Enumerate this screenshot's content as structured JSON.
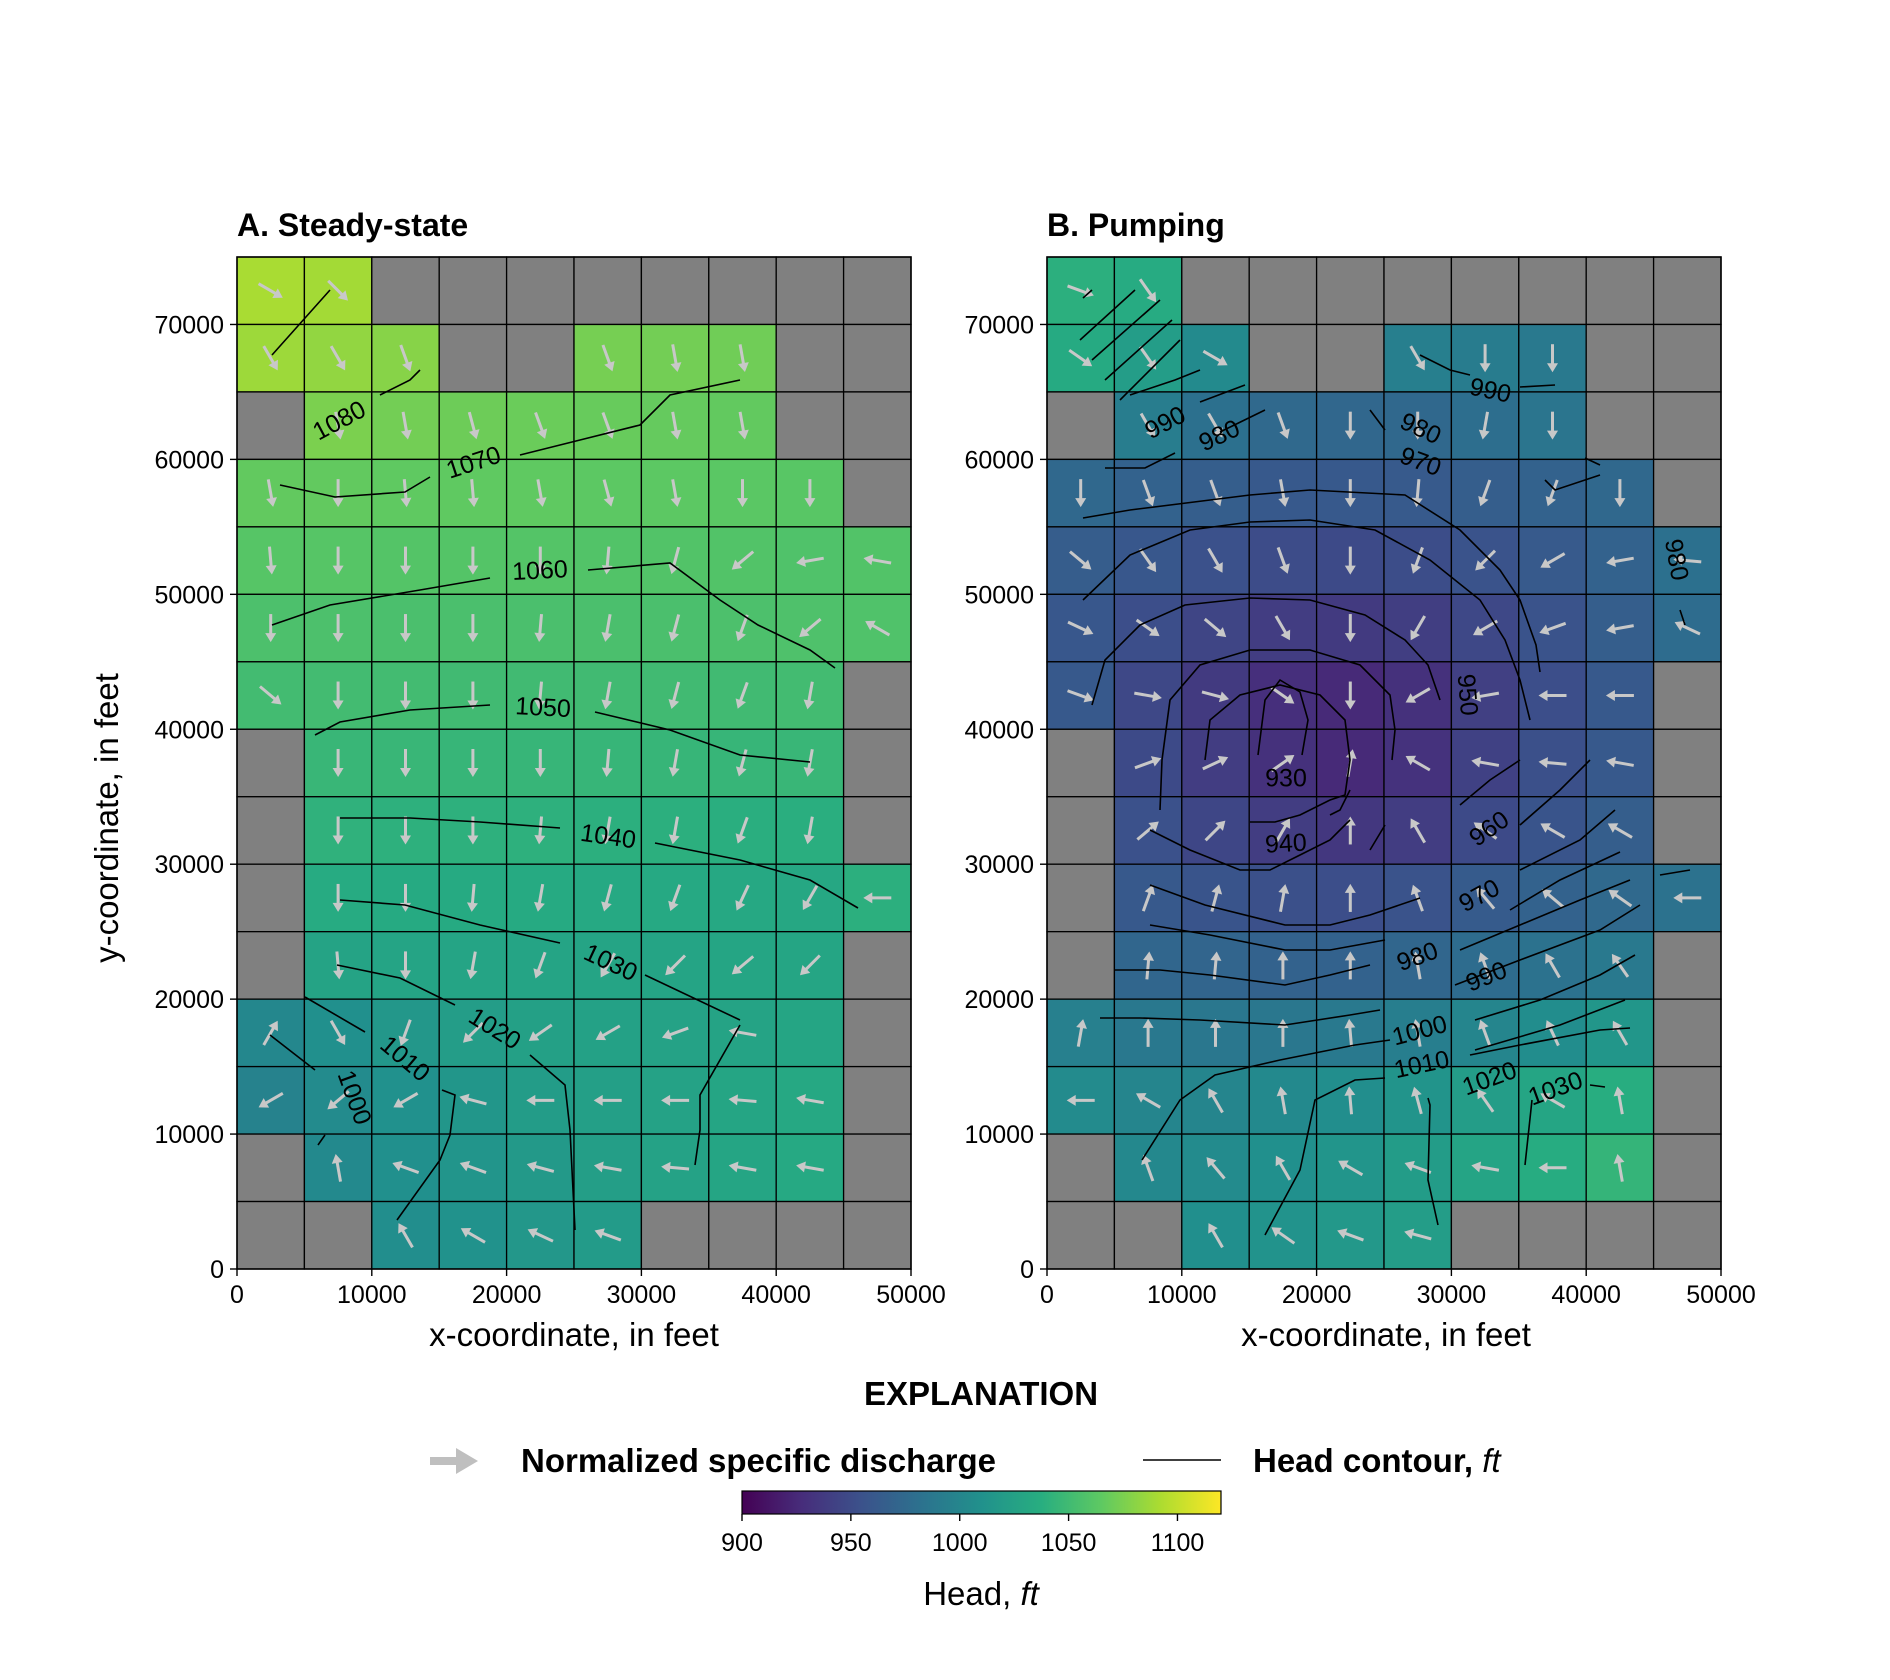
{
  "chart_data": [
    {
      "type": "heatmap",
      "title": "A. Steady-state",
      "xlabel": "x-coordinate, in feet",
      "ylabel": "y-coordinate, in feet",
      "xlim": [
        0,
        50000
      ],
      "ylim": [
        0,
        75000
      ],
      "cell_size_ft": 5000,
      "inactive_color": "#808080",
      "xticks": [
        "0",
        "10000",
        "20000",
        "30000",
        "40000",
        "50000"
      ],
      "yticks": [
        "0",
        "10000",
        "20000",
        "30000",
        "40000",
        "50000",
        "60000",
        "70000"
      ],
      "head_grid_rows_top_to_bottom": [
        [
          1092,
          1090,
          null,
          null,
          null,
          null,
          null,
          null,
          null,
          null
        ],
        [
          1088,
          1084,
          1080,
          null,
          null,
          1074,
          1073,
          1072,
          null,
          null
        ],
        [
          null,
          1076,
          1073,
          1071,
          1070,
          1069,
          1068,
          1067,
          null,
          null
        ],
        [
          1067,
          1067,
          1066,
          1066,
          1066,
          1065,
          1065,
          1064,
          1063,
          null
        ],
        [
          1062,
          1062,
          1061,
          1061,
          1061,
          1060,
          1060,
          1060,
          1059,
          1060
        ],
        [
          1057,
          1057,
          1056,
          1056,
          1056,
          1056,
          1056,
          1057,
          1058,
          1059
        ],
        [
          1052,
          1052,
          1052,
          1051,
          1051,
          1051,
          1051,
          1051,
          1052,
          null
        ],
        [
          null,
          1047,
          1047,
          1046,
          1046,
          1046,
          1046,
          1046,
          1047,
          null
        ],
        [
          null,
          1042,
          1041,
          1041,
          1041,
          1040,
          1040,
          1039,
          1039,
          null
        ],
        [
          null,
          1036,
          1035,
          1035,
          1035,
          1034,
          1034,
          1033,
          1032,
          1040
        ],
        [
          null,
          1028,
          1029,
          1029,
          1029,
          1029,
          1029,
          1030,
          1030,
          null
        ],
        [
          1002,
          1010,
          1017,
          1022,
          1025,
          1026,
          1027,
          1028,
          1030,
          null
        ],
        [
          998,
          1006,
          1011,
          1016,
          1021,
          1024,
          1027,
          1030,
          1033,
          null
        ],
        [
          null,
          1004,
          1010,
          1015,
          1019,
          1023,
          1027,
          1030,
          1034,
          null
        ],
        [
          null,
          null,
          1008,
          1012,
          1017,
          1020,
          null,
          null,
          null,
          null
        ]
      ],
      "discharge_direction_deg_rows_top_to_bottom": [
        [
          -30,
          -45,
          null,
          null,
          null,
          null,
          null,
          null,
          null,
          null
        ],
        [
          -60,
          -60,
          -70,
          null,
          null,
          -70,
          -80,
          -80,
          null,
          null
        ],
        [
          null,
          -80,
          -80,
          -75,
          -70,
          -70,
          -80,
          -80,
          null,
          null
        ],
        [
          -80,
          -90,
          -85,
          -85,
          -80,
          -75,
          -80,
          -90,
          -90,
          null
        ],
        [
          -85,
          -90,
          -90,
          -90,
          -90,
          -95,
          -105,
          -140,
          -170,
          170
        ],
        [
          -90,
          -90,
          -90,
          -90,
          -95,
          -100,
          -105,
          -110,
          -140,
          150
        ],
        [
          -40,
          -90,
          -90,
          -90,
          -95,
          -100,
          -105,
          -110,
          -100,
          null
        ],
        [
          null,
          -90,
          -90,
          -90,
          -90,
          -95,
          -100,
          -105,
          -100,
          null
        ],
        [
          null,
          -90,
          -90,
          -90,
          -95,
          -100,
          -100,
          -110,
          -100,
          null
        ],
        [
          null,
          -90,
          -90,
          -95,
          -100,
          -105,
          -110,
          -115,
          -120,
          180
        ],
        [
          null,
          -85,
          -90,
          -100,
          -110,
          -120,
          -135,
          -140,
          -135,
          null
        ],
        [
          60,
          -60,
          -110,
          -135,
          -145,
          -150,
          -160,
          170,
          null,
          null
        ],
        [
          -150,
          -140,
          -150,
          165,
          180,
          180,
          180,
          175,
          170,
          null
        ],
        [
          null,
          100,
          160,
          160,
          165,
          170,
          175,
          170,
          170,
          null
        ],
        [
          null,
          null,
          120,
          150,
          155,
          160,
          null,
          null,
          null,
          null
        ]
      ],
      "contour_levels": [
        1000,
        1010,
        1020,
        1030,
        1040,
        1050,
        1060,
        1070,
        1080
      ]
    },
    {
      "type": "heatmap",
      "title": "B. Pumping",
      "xlabel": "x-coordinate, in feet",
      "ylabel": "",
      "xlim": [
        0,
        50000
      ],
      "ylim": [
        0,
        75000
      ],
      "cell_size_ft": 5000,
      "inactive_color": "#808080",
      "xticks": [
        "0",
        "10000",
        "20000",
        "30000",
        "40000",
        "50000"
      ],
      "yticks": [
        "0",
        "10000",
        "20000",
        "30000",
        "40000",
        "50000",
        "60000",
        "70000"
      ],
      "head_grid_rows_top_to_bottom": [
        [
          1040,
          1036,
          null,
          null,
          null,
          null,
          null,
          null,
          null,
          null
        ],
        [
          1035,
          1022,
          1005,
          null,
          null,
          995,
          992,
          990,
          null,
          null
        ],
        [
          null,
          993,
          982,
          976,
          974,
          975,
          980,
          986,
          null,
          null
        ],
        [
          975,
          970,
          966,
          962,
          962,
          963,
          966,
          970,
          975,
          null
        ],
        [
          965,
          960,
          955,
          951,
          950,
          952,
          957,
          963,
          970,
          982
        ],
        [
          960,
          953,
          946,
          940,
          938,
          941,
          948,
          957,
          966,
          978
        ],
        [
          962,
          948,
          938,
          930,
          926,
          931,
          942,
          953,
          962,
          null
        ],
        [
          null,
          950,
          940,
          931,
          926,
          932,
          943,
          954,
          962,
          null
        ],
        [
          null,
          955,
          947,
          940,
          936,
          940,
          950,
          958,
          966,
          null
        ],
        [
          null,
          962,
          958,
          954,
          953,
          957,
          964,
          970,
          976,
          983
        ],
        [
          null,
          973,
          972,
          970,
          970,
          973,
          978,
          983,
          990,
          null
        ],
        [
          996,
          989,
          988,
          988,
          990,
          994,
          1000,
          1007,
          1016,
          null
        ],
        [
          1006,
          1000,
          1000,
          1004,
          1008,
          1014,
          1022,
          1030,
          1038,
          null
        ],
        [
          null,
          1003,
          1006,
          1010,
          1015,
          1021,
          1029,
          1037,
          1045,
          null
        ],
        [
          null,
          null,
          1009,
          1013,
          1018,
          1022,
          null,
          null,
          null,
          null
        ]
      ],
      "discharge_direction_deg_rows_top_to_bottom": [
        [
          -20,
          -55,
          null,
          null,
          null,
          null,
          null,
          null,
          null,
          null
        ],
        [
          -35,
          -55,
          -30,
          null,
          null,
          -60,
          -90,
          -90,
          null,
          null
        ],
        [
          null,
          -60,
          -60,
          -70,
          -90,
          -90,
          -100,
          -90,
          null,
          null
        ],
        [
          -90,
          -70,
          -70,
          -80,
          -90,
          -95,
          -110,
          -110,
          -90,
          null
        ],
        [
          -40,
          -55,
          -60,
          -70,
          -90,
          -110,
          -135,
          -150,
          -170,
          175
        ],
        [
          -25,
          -35,
          -40,
          -60,
          -90,
          -120,
          -150,
          -160,
          -170,
          155
        ],
        [
          -20,
          -10,
          -15,
          -35,
          -90,
          -150,
          -170,
          180,
          180,
          null
        ],
        [
          null,
          20,
          25,
          35,
          80,
          150,
          170,
          175,
          170,
          null
        ],
        [
          null,
          40,
          45,
          60,
          90,
          120,
          145,
          150,
          150,
          null
        ],
        [
          null,
          70,
          75,
          80,
          90,
          110,
          130,
          140,
          145,
          180
        ],
        [
          null,
          85,
          85,
          90,
          90,
          100,
          110,
          120,
          125,
          null
        ],
        [
          80,
          90,
          90,
          90,
          95,
          100,
          110,
          115,
          120,
          null
        ],
        [
          180,
          150,
          120,
          100,
          95,
          105,
          125,
          150,
          100,
          null
        ],
        [
          null,
          110,
          130,
          120,
          150,
          160,
          170,
          180,
          100,
          null
        ],
        [
          null,
          null,
          120,
          145,
          160,
          165,
          null,
          null,
          null,
          null
        ]
      ],
      "contour_levels": [
        930,
        940,
        950,
        960,
        970,
        980,
        990,
        1000,
        1010,
        1020,
        1030
      ]
    }
  ],
  "legend": {
    "heading": "EXPLANATION",
    "arrow_label": "Normalized specific discharge",
    "arrow_color": "#bfbfbf",
    "contour_label": "Head contour, ",
    "contour_unit": "ft"
  },
  "colorbar": {
    "colormap": "viridis",
    "vmin": 900,
    "vmax": 1120,
    "ticks": [
      "900",
      "950",
      "1000",
      "1050",
      "1100"
    ],
    "label": "Head, ",
    "label_unit": "ft"
  }
}
